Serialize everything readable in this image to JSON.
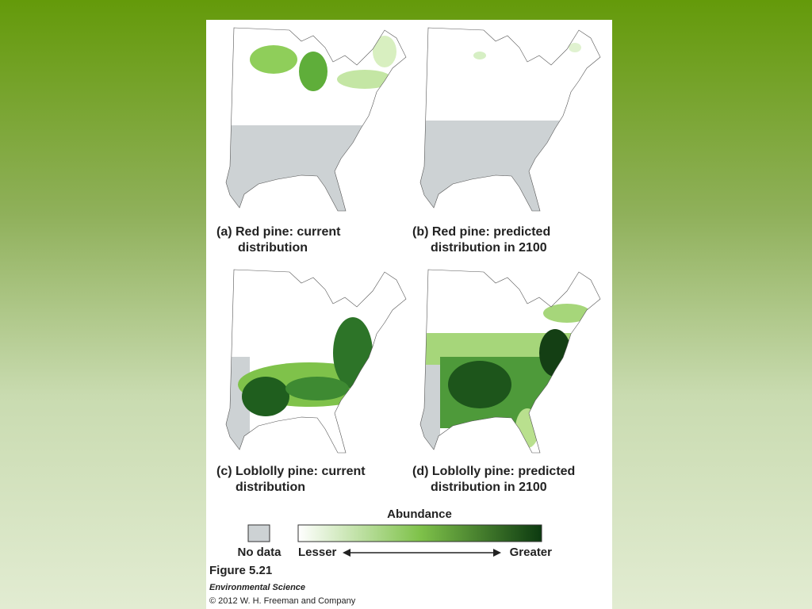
{
  "panels": [
    {
      "caption": [
        "(a) Red pine: current",
        "distribution"
      ]
    },
    {
      "caption": [
        "(b) Red pine: predicted",
        "distribution in 2100"
      ]
    },
    {
      "caption": [
        "(c) Loblolly pine: current",
        "distribution"
      ]
    },
    {
      "caption": [
        "(d) Loblolly pine: predicted",
        "distribution in 2100"
      ]
    }
  ],
  "legend": {
    "title": "Abundance",
    "no_data": "No data",
    "lesser": "Lesser",
    "greater": "Greater"
  },
  "figure": {
    "number": "Figure 5.21",
    "book": "Environmental Science",
    "credit": "© 2012 W. H. Freeman and Company"
  }
}
